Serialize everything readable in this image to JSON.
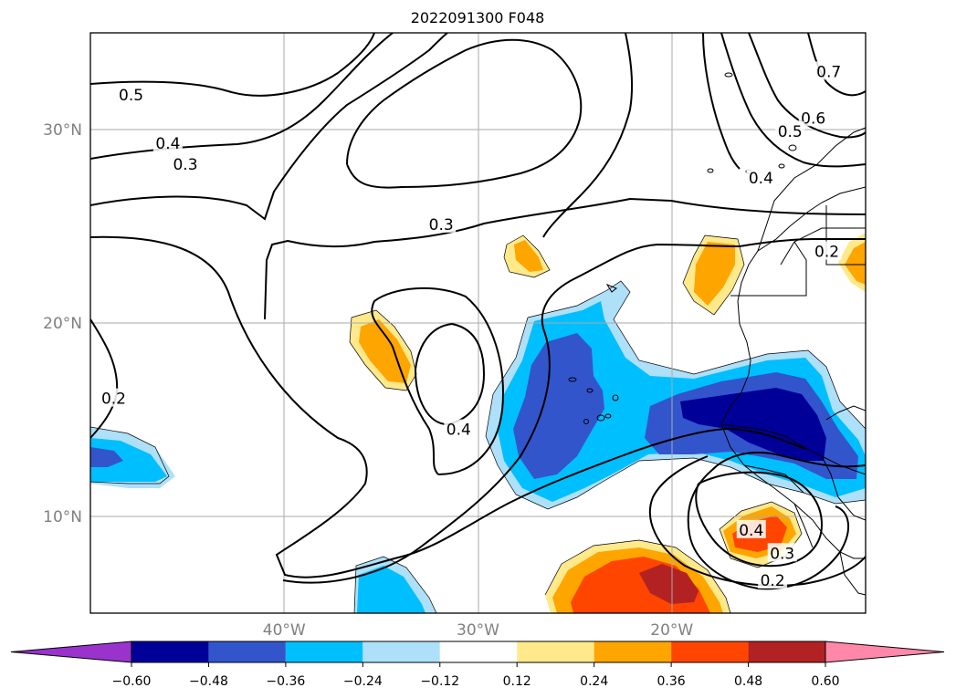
{
  "chart_data": {
    "type": "contour-map",
    "title": "2022091300 F048",
    "extent": {
      "lon": [
        -50,
        -10
      ],
      "lat": [
        5,
        35
      ]
    },
    "grid": true,
    "lat_ticks": [
      {
        "lat": 10,
        "label": "10°N"
      },
      {
        "lat": 20,
        "label": "20°N"
      },
      {
        "lat": 30,
        "label": "30°N"
      }
    ],
    "lon_ticks": [
      {
        "lon": -40,
        "label": "40°W"
      },
      {
        "lon": -30,
        "label": "30°W"
      },
      {
        "lon": -20,
        "label": "20°W"
      }
    ],
    "colorbar": {
      "levels": [
        -0.6,
        -0.48,
        -0.36,
        -0.24,
        -0.12,
        0.12,
        0.24,
        0.36,
        0.48,
        0.6
      ],
      "tick_labels": [
        "−0.60",
        "−0.48",
        "−0.36",
        "−0.24",
        "−0.12",
        "0.12",
        "0.24",
        "0.36",
        "0.48",
        "0.60"
      ],
      "colors": [
        "#9933cc",
        "#000099",
        "#3355cc",
        "#00bfff",
        "#aee0fa",
        "#ffffff",
        "#ffe98a",
        "#ffa500",
        "#ff4500",
        "#b22222",
        "#ff88aa"
      ],
      "extend": "both"
    },
    "contour_labels": [
      {
        "text": "0.5",
        "lon": -47.9,
        "lat": 31.8
      },
      {
        "text": "0.4",
        "lon": -46.0,
        "lat": 29.3
      },
      {
        "text": "0.3",
        "lon": -45.1,
        "lat": 28.2
      },
      {
        "text": "0.3",
        "lon": -31.9,
        "lat": 25.1
      },
      {
        "text": "0.4",
        "lon": -31.0,
        "lat": 14.5
      },
      {
        "text": "0.2",
        "lon": -48.8,
        "lat": 16.1
      },
      {
        "text": "0.7",
        "lon": -11.9,
        "lat": 33.0
      },
      {
        "text": "0.6",
        "lon": -12.7,
        "lat": 30.6
      },
      {
        "text": "0.5",
        "lon": -13.9,
        "lat": 29.9
      },
      {
        "text": "0.4",
        "lon": -15.4,
        "lat": 27.5
      },
      {
        "text": "0.2",
        "lon": -12.0,
        "lat": 23.7
      },
      {
        "text": "0.4",
        "lon": -15.9,
        "lat": 9.3
      },
      {
        "text": "0.3",
        "lon": -14.3,
        "lat": 8.1
      },
      {
        "text": "0.2",
        "lon": -14.8,
        "lat": 6.7
      }
    ]
  }
}
